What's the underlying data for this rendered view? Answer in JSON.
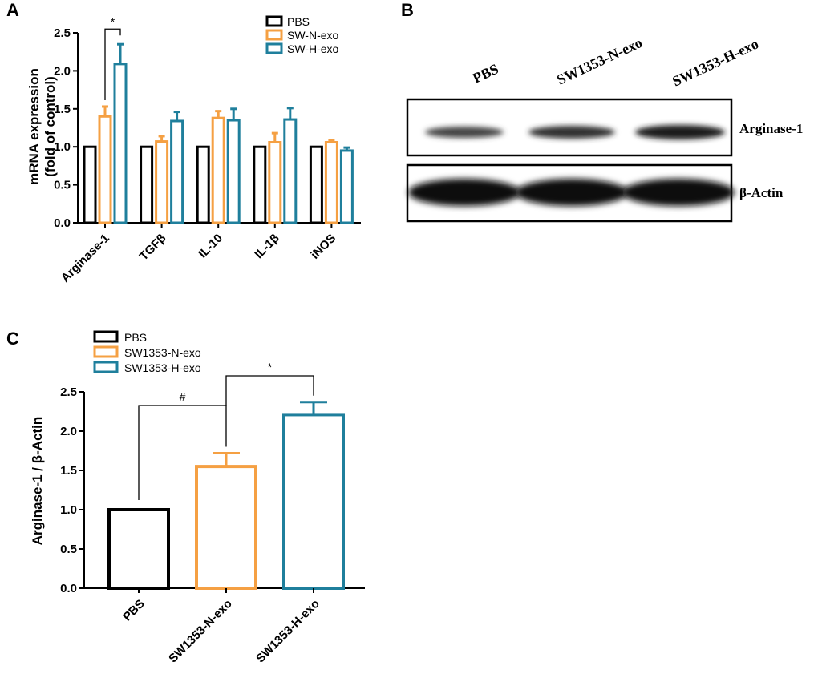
{
  "panels": {
    "a": "A",
    "b": "B",
    "c": "C"
  },
  "chart_data": [
    {
      "id": "A",
      "type": "bar",
      "ylabel_line1": "mRNA expression",
      "ylabel_line2": "(fold of control)",
      "ylim": [
        0,
        2.5
      ],
      "yticks": [
        "0.0",
        "0.5",
        "1.0",
        "1.5",
        "2.0",
        "2.5"
      ],
      "categories": [
        "Arginase-1",
        "TGFβ",
        "IL-10",
        "IL-1β",
        "iNOS"
      ],
      "series": [
        {
          "name": "PBS",
          "color": "#000000",
          "values": [
            1.0,
            1.0,
            1.0,
            1.0,
            1.0
          ],
          "errors": [
            0,
            0,
            0,
            0,
            0
          ]
        },
        {
          "name": "SW-N-exo",
          "color": "#f5a043",
          "values": [
            1.4,
            1.07,
            1.38,
            1.06,
            1.06
          ],
          "errors": [
            0.13,
            0.07,
            0.09,
            0.12,
            0.03
          ]
        },
        {
          "name": "SW-H-exo",
          "color": "#1f7f9c",
          "values": [
            2.09,
            1.34,
            1.35,
            1.36,
            0.95
          ],
          "errors": [
            0.26,
            0.12,
            0.15,
            0.15,
            0.04
          ]
        }
      ],
      "significance": [
        {
          "category": "Arginase-1",
          "between": [
            "SW-N-exo",
            "SW-H-exo"
          ],
          "label": "*"
        }
      ]
    },
    {
      "id": "C",
      "type": "bar",
      "ylabel": "Arginase-1 / β-Actin",
      "ylim": [
        0,
        2.5
      ],
      "yticks": [
        "0.0",
        "0.5",
        "1.0",
        "1.5",
        "2.0",
        "2.5"
      ],
      "categories": [
        "PBS",
        "SW1353-N-exo",
        "SW1353-H-exo"
      ],
      "legend": [
        "PBS",
        "SW1353-N-exo",
        "SW1353-H-exo"
      ],
      "colors": [
        "#000000",
        "#f5a043",
        "#1f7f9c"
      ],
      "values": [
        1.0,
        1.55,
        2.21
      ],
      "errors": [
        0,
        0.17,
        0.16
      ],
      "significance": [
        {
          "between": [
            "PBS",
            "SW1353-N-exo"
          ],
          "label": "#"
        },
        {
          "between": [
            "SW1353-N-exo",
            "SW1353-H-exo"
          ],
          "label": "*"
        }
      ]
    }
  ],
  "western_blot": {
    "lanes": [
      "PBS",
      "SW1353-N-exo",
      "SW1353-H-exo"
    ],
    "proteins": [
      "Arginase-1",
      "β-Actin"
    ]
  }
}
